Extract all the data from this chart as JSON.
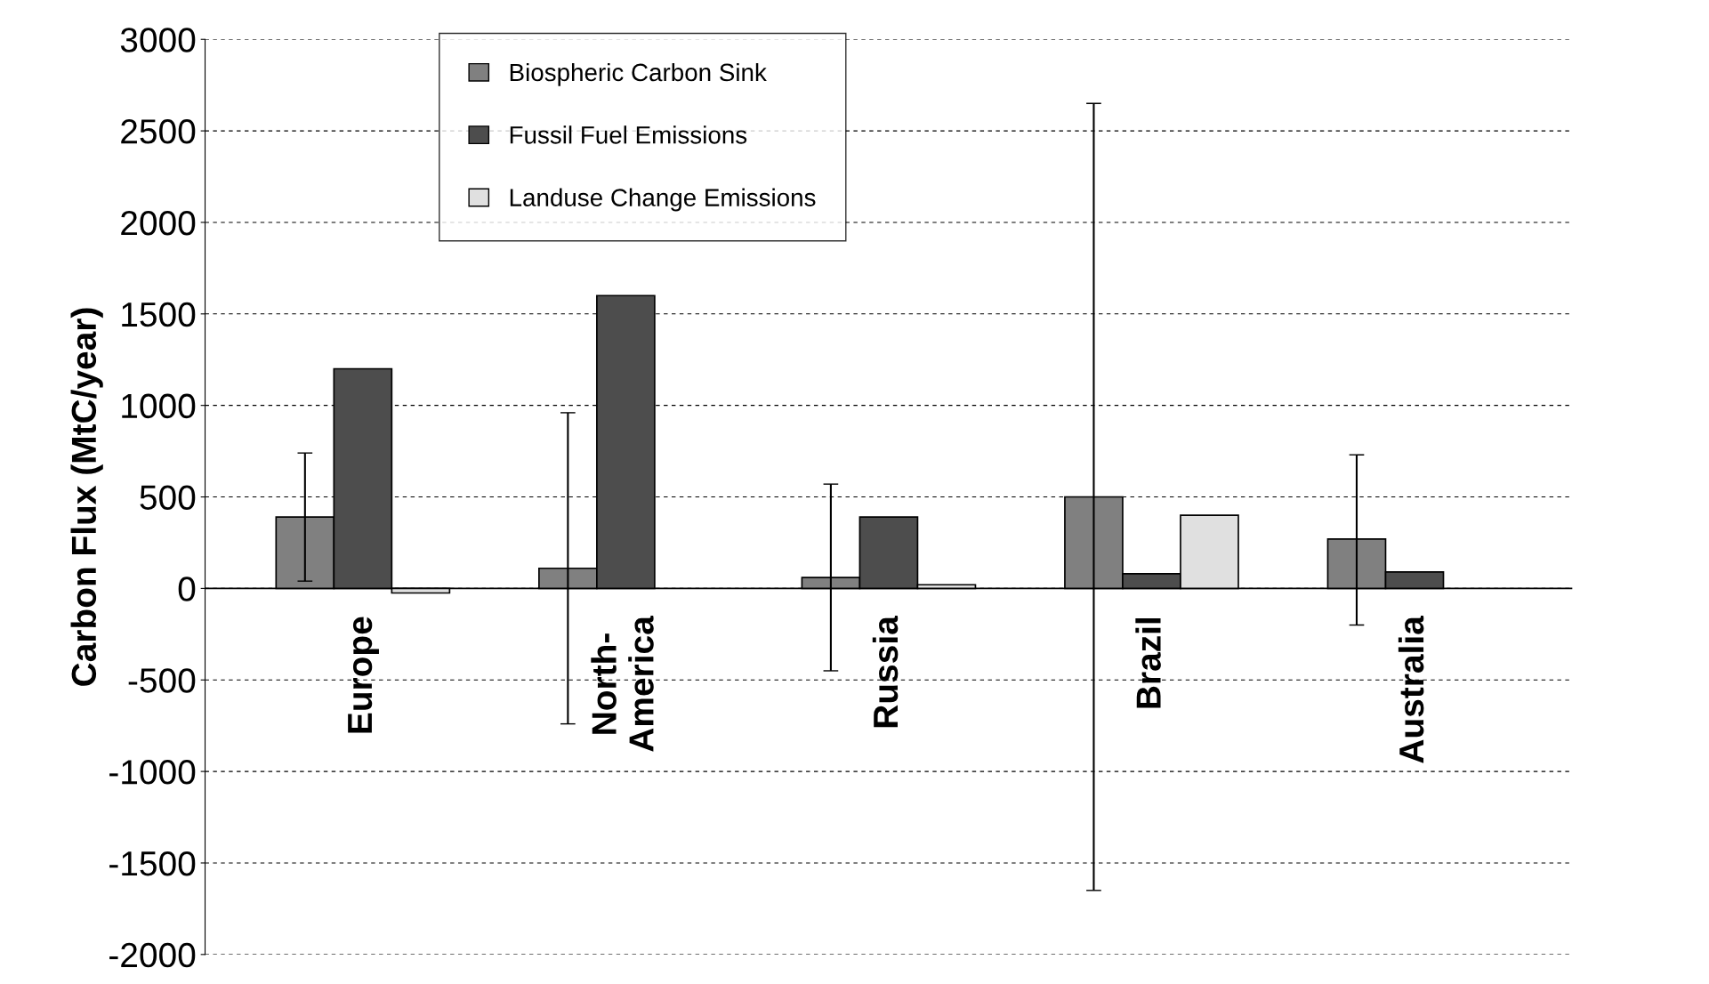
{
  "chart_data": {
    "type": "bar",
    "ylabel": "Carbon Flux (MtC/year)",
    "categories": [
      "Europe",
      "North-\nAmerica",
      "Russia",
      "Brazil",
      "Australia"
    ],
    "series": [
      {
        "name": "Biospheric Carbon Sink",
        "color": "#808080",
        "values": [
          390,
          110,
          60,
          500,
          270
        ],
        "errors": [
          [
            40,
            740
          ],
          [
            -740,
            960
          ],
          [
            -450,
            570
          ],
          [
            -1650,
            2650
          ],
          [
            -200,
            730
          ]
        ]
      },
      {
        "name": "Fussil Fuel Emissions",
        "color": "#4d4d4d",
        "values": [
          1200,
          1600,
          390,
          80,
          90
        ]
      },
      {
        "name": "Landuse Change Emissions",
        "color": "#e0e0e0",
        "values": [
          -25,
          null,
          20,
          400,
          null
        ]
      }
    ],
    "ylim": [
      -2000,
      3000
    ],
    "yticks": [
      -2000,
      -1500,
      -1000,
      -500,
      0,
      500,
      1000,
      1500,
      2000,
      2500,
      3000
    ],
    "grid": "y",
    "legend": "top"
  }
}
